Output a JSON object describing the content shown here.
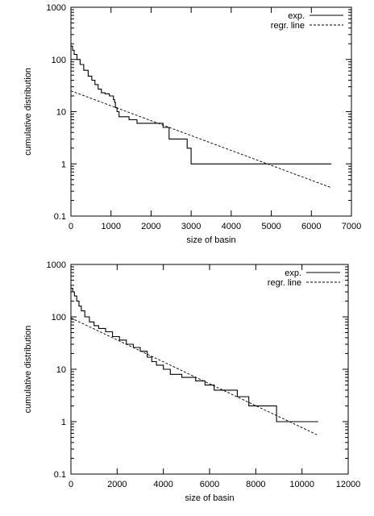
{
  "chart_data": [
    {
      "type": "line",
      "xlabel": "size of basin",
      "ylabel": "cumulative distribution",
      "xlim": [
        0,
        7000
      ],
      "ylim": [
        0.1,
        1000
      ],
      "yscale": "log",
      "xticks": [
        "0",
        "1000",
        "2000",
        "3000",
        "4000",
        "5000",
        "6000",
        "7000"
      ],
      "yticks": [
        "0.1",
        "1",
        "10",
        "100",
        "1000"
      ],
      "grid": false,
      "legend": "top-right",
      "series": [
        {
          "name": "exp.",
          "style": "solid",
          "step": true,
          "points": [
            [
              0,
              180
            ],
            [
              40,
              150
            ],
            [
              80,
              125
            ],
            [
              150,
              100
            ],
            [
              230,
              80
            ],
            [
              320,
              62
            ],
            [
              430,
              48
            ],
            [
              520,
              40
            ],
            [
              600,
              33
            ],
            [
              680,
              27
            ],
            [
              760,
              23
            ],
            [
              850,
              22
            ],
            [
              960,
              20
            ],
            [
              1060,
              17
            ],
            [
              1090,
              15
            ],
            [
              1110,
              12
            ],
            [
              1150,
              10
            ],
            [
              1200,
              8
            ],
            [
              1450,
              7
            ],
            [
              1650,
              6
            ],
            [
              2300,
              5
            ],
            [
              2450,
              3
            ],
            [
              2900,
              2
            ],
            [
              3000,
              1
            ],
            [
              6500,
              1
            ]
          ]
        },
        {
          "name": "regr. line",
          "style": "dashed",
          "points": [
            [
              0,
              25
            ],
            [
              6500,
              0.35
            ]
          ]
        }
      ]
    },
    {
      "type": "line",
      "xlabel": "size of basin",
      "ylabel": "cumulative distribution",
      "xlim": [
        0,
        12000
      ],
      "ylim": [
        0.1,
        1000
      ],
      "yscale": "log",
      "xticks": [
        "0",
        "2000",
        "4000",
        "6000",
        "8000",
        "10000",
        "12000"
      ],
      "yticks": [
        "0.1",
        "1",
        "10",
        "100",
        "1000"
      ],
      "grid": false,
      "legend": "top-right",
      "series": [
        {
          "name": "exp.",
          "style": "solid",
          "step": true,
          "points": [
            [
              0,
              350
            ],
            [
              80,
              300
            ],
            [
              150,
              250
            ],
            [
              250,
              200
            ],
            [
              350,
              160
            ],
            [
              450,
              130
            ],
            [
              600,
              100
            ],
            [
              800,
              80
            ],
            [
              1000,
              68
            ],
            [
              1200,
              60
            ],
            [
              1500,
              52
            ],
            [
              1800,
              42
            ],
            [
              2100,
              36
            ],
            [
              2400,
              30
            ],
            [
              2700,
              26
            ],
            [
              3000,
              22
            ],
            [
              3300,
              17
            ],
            [
              3500,
              14
            ],
            [
              3700,
              12
            ],
            [
              4000,
              10
            ],
            [
              4300,
              8
            ],
            [
              4800,
              7
            ],
            [
              5400,
              6
            ],
            [
              5800,
              5
            ],
            [
              6200,
              4
            ],
            [
              7100,
              4
            ],
            [
              7200,
              3
            ],
            [
              7700,
              2
            ],
            [
              8900,
              1
            ],
            [
              10700,
              1
            ]
          ]
        },
        {
          "name": "regr. line",
          "style": "dashed",
          "points": [
            [
              0,
              95
            ],
            [
              10700,
              0.55
            ]
          ]
        }
      ]
    }
  ]
}
